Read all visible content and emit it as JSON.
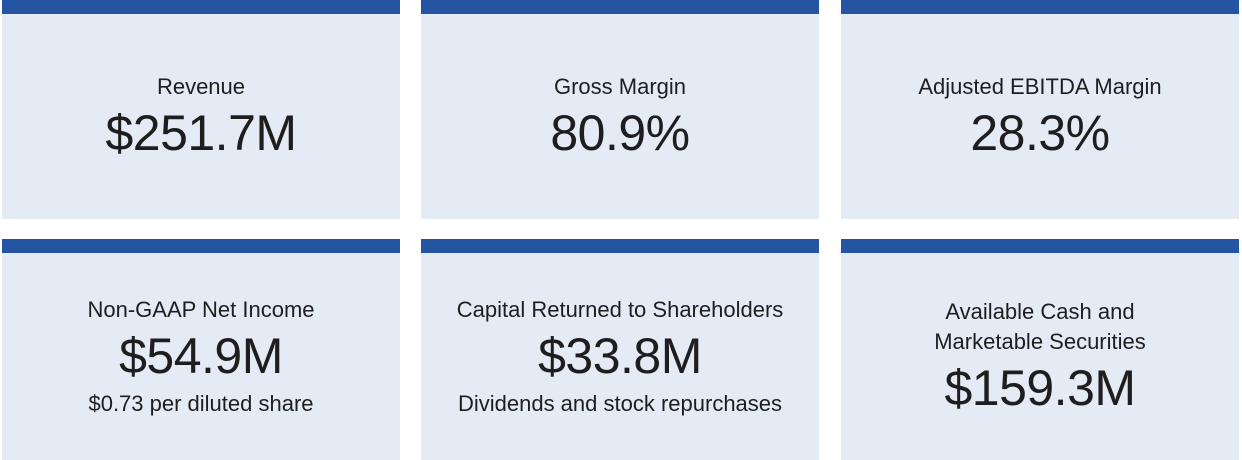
{
  "colors": {
    "accent_bar": "#2554a2",
    "card_background": "#e4ebf5",
    "text": "#1e1e1e"
  },
  "metrics": [
    {
      "label": "Revenue",
      "value": "$251.7M"
    },
    {
      "label": "Gross Margin",
      "value": "80.9%"
    },
    {
      "label": "Adjusted EBITDA Margin",
      "value": "28.3%"
    },
    {
      "label": "Non-GAAP Net Income",
      "value": "$54.9M",
      "sub": "$0.73 per diluted share"
    },
    {
      "label": "Capital Returned to Shareholders",
      "value": "$33.8M",
      "sub": "Dividends and stock repurchases"
    },
    {
      "label_line1": "Available Cash and",
      "label_line2": "Marketable Securities",
      "value": "$159.3M"
    }
  ]
}
